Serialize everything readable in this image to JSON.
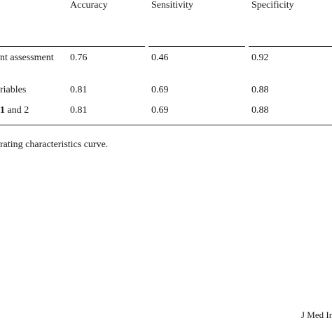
{
  "table": {
    "columns": [
      "Accuracy",
      "Sensitivity",
      "Specificity"
    ],
    "rows": [
      {
        "label": "nt assessment",
        "values": [
          "0.76",
          "0.46",
          "0.92"
        ]
      },
      {
        "label": "riables",
        "values": [
          "0.81",
          "0.69",
          "0.88"
        ]
      },
      {
        "label_prefix": "1",
        "label": " and 2",
        "values": [
          "0.81",
          "0.69",
          "0.88"
        ]
      }
    ]
  },
  "footnote": "rating characteristics curve.",
  "journal": "J Med In"
}
